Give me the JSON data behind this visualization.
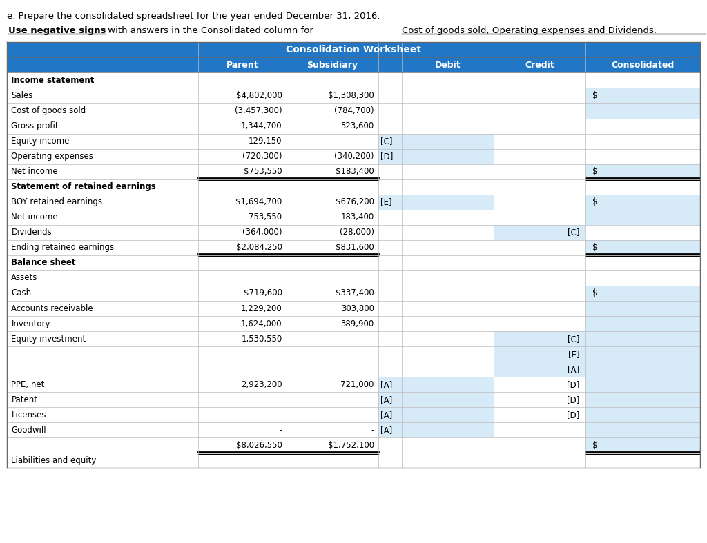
{
  "title_text": "e. Prepare the consolidated spreadsheet for the year ended December 31, 2016.",
  "header_title": "Consolidation Worksheet",
  "header_bg": "#2176C6",
  "header_text_color": "#FFFFFF",
  "light_blue": "#D6EAF8",
  "rows": [
    {
      "label": "Income statement",
      "bold": true,
      "parent": "",
      "sub": "",
      "debit_tag": "",
      "credit_tag": "",
      "consol": "",
      "debit_blue": false,
      "credit_blue": false,
      "consol_blue": false,
      "double_bottom": false
    },
    {
      "label": "Sales",
      "bold": false,
      "parent": "$4,802,000",
      "sub": "$1,308,300",
      "debit_tag": "",
      "credit_tag": "",
      "consol": "$",
      "debit_blue": false,
      "credit_blue": false,
      "consol_blue": true,
      "double_bottom": false
    },
    {
      "label": "Cost of goods sold",
      "bold": false,
      "parent": "(3,457,300)",
      "sub": "(784,700)",
      "debit_tag": "",
      "credit_tag": "",
      "consol": "",
      "debit_blue": false,
      "credit_blue": false,
      "consol_blue": true,
      "double_bottom": false
    },
    {
      "label": "Gross profit",
      "bold": false,
      "parent": "1,344,700",
      "sub": "523,600",
      "debit_tag": "",
      "credit_tag": "",
      "consol": "",
      "debit_blue": false,
      "credit_blue": false,
      "consol_blue": false,
      "double_bottom": false
    },
    {
      "label": "Equity income",
      "bold": false,
      "parent": "129,150",
      "sub": "-",
      "debit_tag": "[C]",
      "credit_tag": "",
      "consol": "",
      "debit_blue": true,
      "credit_blue": false,
      "consol_blue": false,
      "double_bottom": false
    },
    {
      "label": "Operating expenses",
      "bold": false,
      "parent": "(720,300)",
      "sub": "(340,200)",
      "debit_tag": "[D]",
      "credit_tag": "",
      "consol": "",
      "debit_blue": true,
      "credit_blue": false,
      "consol_blue": false,
      "double_bottom": false
    },
    {
      "label": "Net income",
      "bold": false,
      "parent": "$753,550",
      "sub": "$183,400",
      "debit_tag": "",
      "credit_tag": "",
      "consol": "$",
      "debit_blue": false,
      "credit_blue": false,
      "consol_blue": true,
      "double_bottom": true
    },
    {
      "label": "Statement of retained earnings",
      "bold": true,
      "parent": "",
      "sub": "",
      "debit_tag": "",
      "credit_tag": "",
      "consol": "",
      "debit_blue": false,
      "credit_blue": false,
      "consol_blue": false,
      "double_bottom": false
    },
    {
      "label": "BOY retained earnings",
      "bold": false,
      "parent": "$1,694,700",
      "sub": "$676,200",
      "debit_tag": "[E]",
      "credit_tag": "",
      "consol": "$",
      "debit_blue": true,
      "credit_blue": false,
      "consol_blue": true,
      "double_bottom": false
    },
    {
      "label": "Net income",
      "bold": false,
      "parent": "753,550",
      "sub": "183,400",
      "debit_tag": "",
      "credit_tag": "",
      "consol": "",
      "debit_blue": false,
      "credit_blue": false,
      "consol_blue": true,
      "double_bottom": false
    },
    {
      "label": "Dividends",
      "bold": false,
      "parent": "(364,000)",
      "sub": "(28,000)",
      "debit_tag": "",
      "credit_tag": "[C]",
      "consol": "",
      "debit_blue": false,
      "credit_blue": true,
      "consol_blue": false,
      "double_bottom": false
    },
    {
      "label": "Ending retained earnings",
      "bold": false,
      "parent": "$2,084,250",
      "sub": "$831,600",
      "debit_tag": "",
      "credit_tag": "",
      "consol": "$",
      "debit_blue": false,
      "credit_blue": false,
      "consol_blue": true,
      "double_bottom": true
    },
    {
      "label": "Balance sheet",
      "bold": true,
      "parent": "",
      "sub": "",
      "debit_tag": "",
      "credit_tag": "",
      "consol": "",
      "debit_blue": false,
      "credit_blue": false,
      "consol_blue": false,
      "double_bottom": false
    },
    {
      "label": "Assets",
      "bold": false,
      "parent": "",
      "sub": "",
      "debit_tag": "",
      "credit_tag": "",
      "consol": "",
      "debit_blue": false,
      "credit_blue": false,
      "consol_blue": false,
      "double_bottom": false
    },
    {
      "label": "Cash",
      "bold": false,
      "parent": "$719,600",
      "sub": "$337,400",
      "debit_tag": "",
      "credit_tag": "",
      "consol": "$",
      "debit_blue": false,
      "credit_blue": false,
      "consol_blue": true,
      "double_bottom": false
    },
    {
      "label": "Accounts receivable",
      "bold": false,
      "parent": "1,229,200",
      "sub": "303,800",
      "debit_tag": "",
      "credit_tag": "",
      "consol": "",
      "debit_blue": false,
      "credit_blue": false,
      "consol_blue": true,
      "double_bottom": false
    },
    {
      "label": "Inventory",
      "bold": false,
      "parent": "1,624,000",
      "sub": "389,900",
      "debit_tag": "",
      "credit_tag": "",
      "consol": "",
      "debit_blue": false,
      "credit_blue": false,
      "consol_blue": true,
      "double_bottom": false
    },
    {
      "label": "Equity investment",
      "bold": false,
      "parent": "1,530,550",
      "sub": "-",
      "debit_tag": "",
      "credit_tag": "[C]",
      "consol": "",
      "debit_blue": false,
      "credit_blue": true,
      "consol_blue": true,
      "double_bottom": false
    },
    {
      "label": "",
      "bold": false,
      "parent": "",
      "sub": "",
      "debit_tag": "",
      "credit_tag": "[E]",
      "consol": "",
      "debit_blue": false,
      "credit_blue": true,
      "consol_blue": true,
      "double_bottom": false
    },
    {
      "label": "",
      "bold": false,
      "parent": "",
      "sub": "",
      "debit_tag": "",
      "credit_tag": "[A]",
      "consol": "",
      "debit_blue": false,
      "credit_blue": true,
      "consol_blue": true,
      "double_bottom": false
    },
    {
      "label": "PPE, net",
      "bold": false,
      "parent": "2,923,200",
      "sub": "721,000",
      "debit_tag": "[A]",
      "credit_tag": "[D]",
      "consol": "",
      "debit_blue": true,
      "credit_blue": false,
      "consol_blue": true,
      "double_bottom": false
    },
    {
      "label": "Patent",
      "bold": false,
      "parent": "",
      "sub": "",
      "debit_tag": "[A]",
      "credit_tag": "[D]",
      "consol": "",
      "debit_blue": true,
      "credit_blue": false,
      "consol_blue": true,
      "double_bottom": false
    },
    {
      "label": "Licenses",
      "bold": false,
      "parent": "",
      "sub": "",
      "debit_tag": "[A]",
      "credit_tag": "[D]",
      "consol": "",
      "debit_blue": true,
      "credit_blue": false,
      "consol_blue": true,
      "double_bottom": false
    },
    {
      "label": "Goodwill",
      "bold": false,
      "parent": "-",
      "sub": "-",
      "debit_tag": "[A]",
      "credit_tag": "",
      "consol": "",
      "debit_blue": true,
      "credit_blue": false,
      "consol_blue": true,
      "double_bottom": false
    },
    {
      "label": "",
      "bold": false,
      "parent": "$8,026,550",
      "sub": "$1,752,100",
      "debit_tag": "",
      "credit_tag": "",
      "consol": "$",
      "debit_blue": false,
      "credit_blue": false,
      "consol_blue": true,
      "double_bottom": true
    },
    {
      "label": "Liabilities and equity",
      "bold": false,
      "parent": "",
      "sub": "",
      "debit_tag": "",
      "credit_tag": "",
      "consol": "",
      "debit_blue": false,
      "credit_blue": false,
      "consol_blue": false,
      "double_bottom": false
    }
  ]
}
